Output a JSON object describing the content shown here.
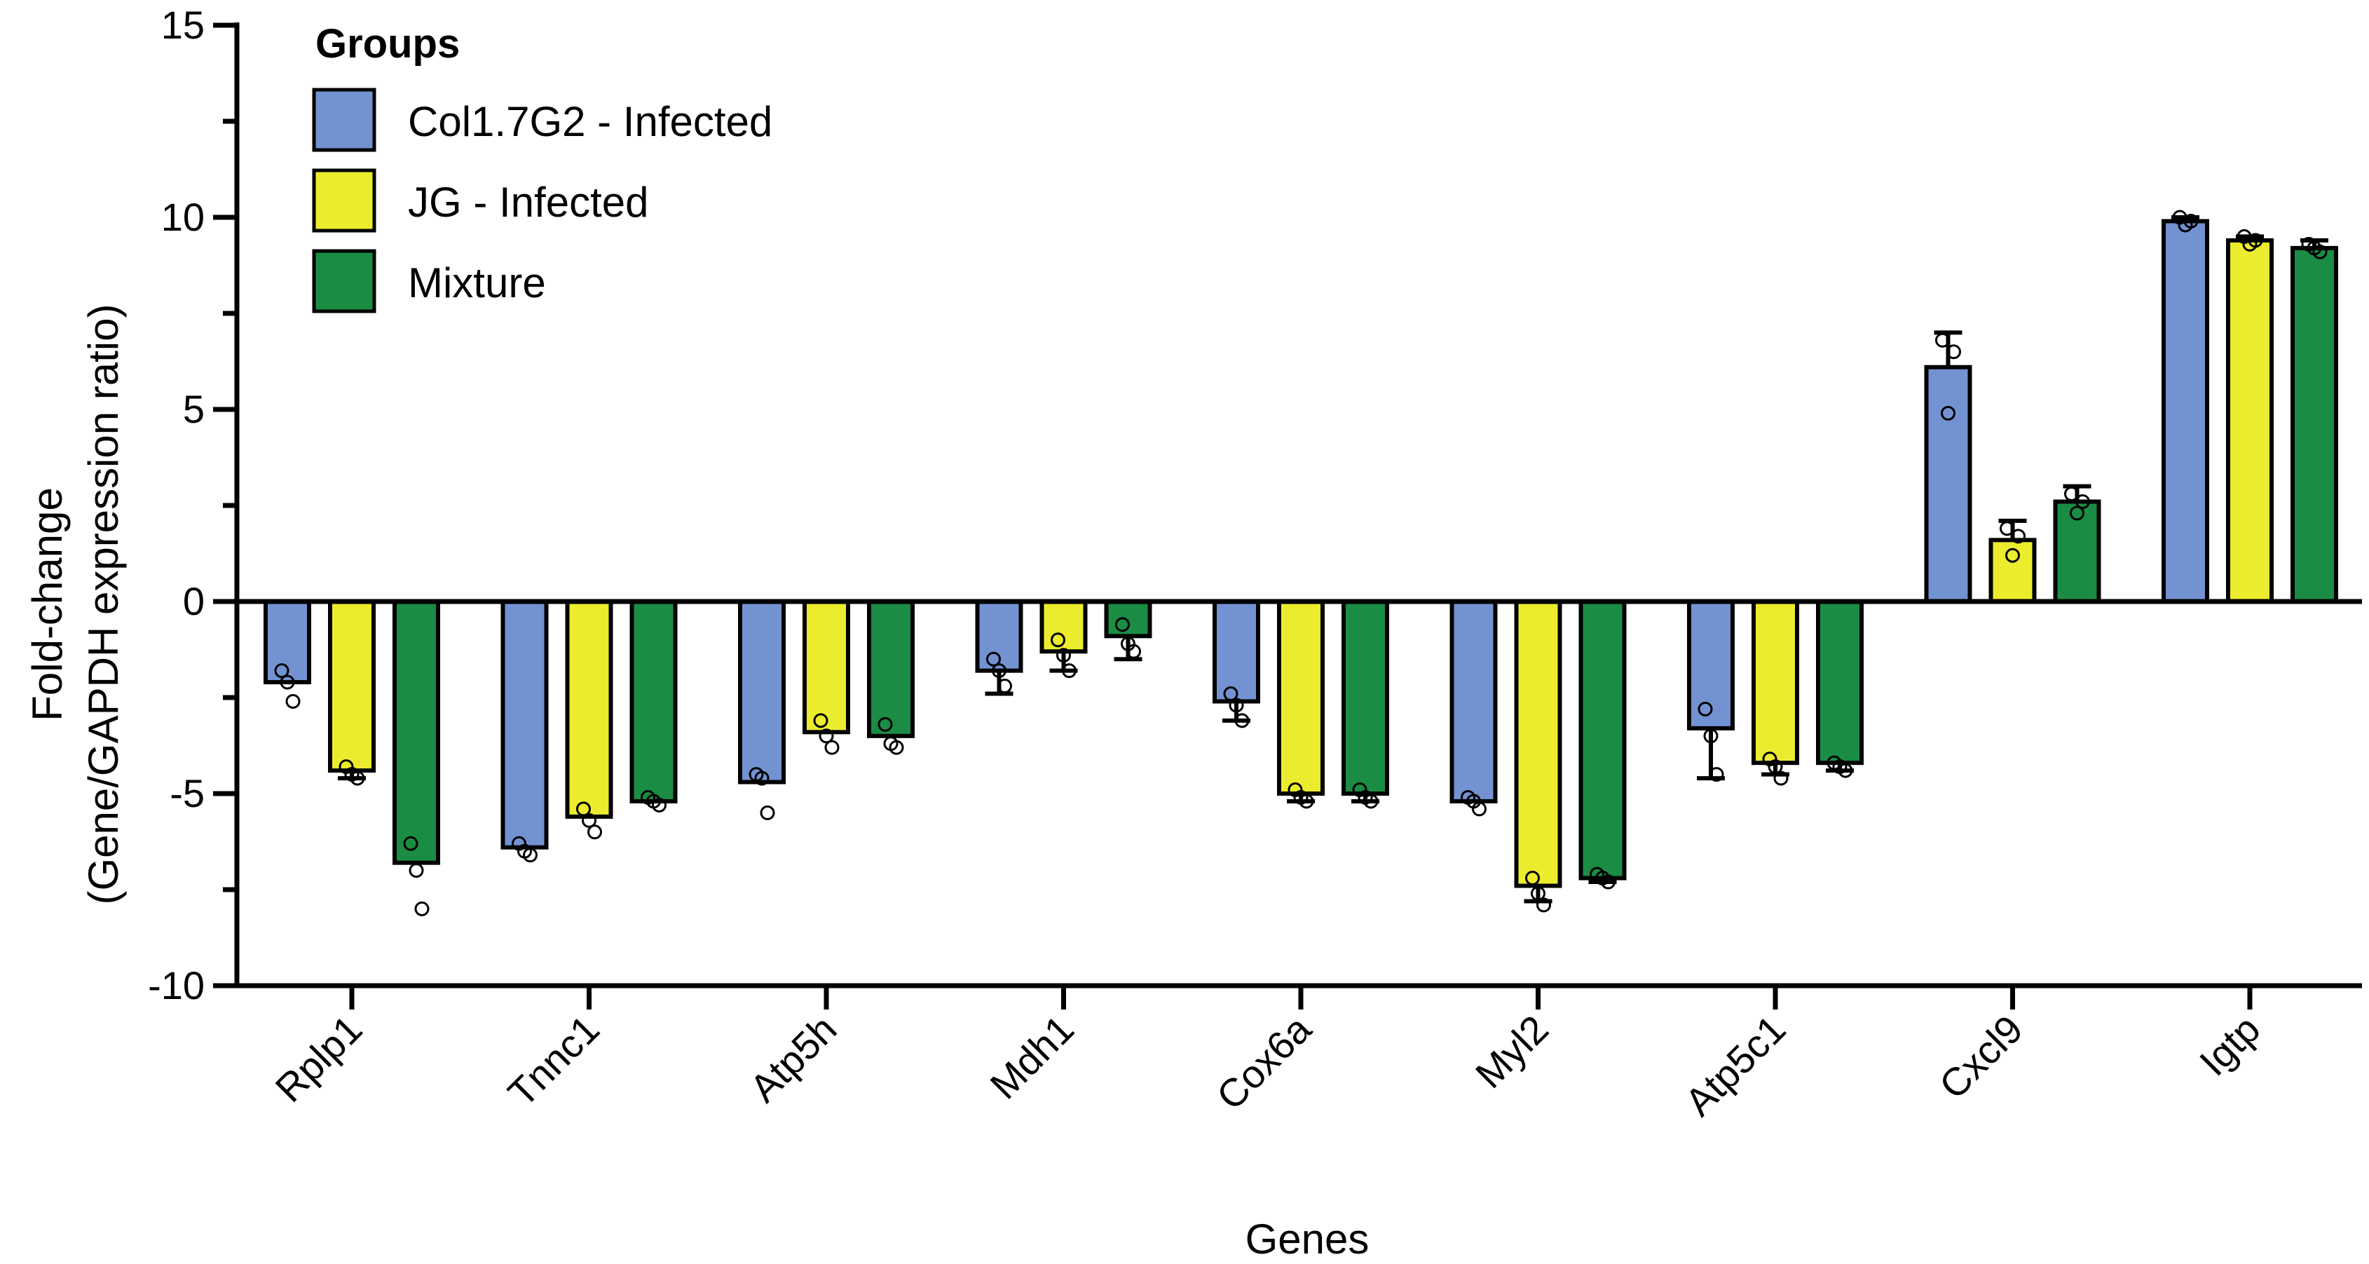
{
  "chart_data": {
    "type": "bar",
    "title": "",
    "xlabel": "Genes",
    "ylabel_line1": "Fold-change",
    "ylabel_line2": "(Gene/GAPDH expression ratio)",
    "ylim": [
      -10,
      15
    ],
    "yticks": [
      -10,
      -5,
      0,
      5,
      10,
      15
    ],
    "ytick_labels": [
      "-10",
      "-5",
      "0",
      "5",
      "10",
      "15"
    ],
    "categories": [
      "Rplp1",
      "Tnnc1",
      "Atp5h",
      "Mdh1",
      "Cox6a",
      "Myl2",
      "Atp5c1",
      "Cxcl9",
      "Igtp"
    ],
    "legend": {
      "title": "Groups",
      "position": "top-left"
    },
    "series": [
      {
        "name": "Col1.7G2 - Infected",
        "color": "#7392d2",
        "values": [
          -2.1,
          -6.4,
          -4.7,
          -1.8,
          -2.6,
          -5.2,
          -3.3,
          6.1,
          9.9
        ],
        "err": [
          0.0,
          0.0,
          0.0,
          0.6,
          0.5,
          0.0,
          1.3,
          0.9,
          0.1
        ],
        "points": [
          [
            -1.8,
            -2.1,
            -2.6
          ],
          [
            -6.3,
            -6.5,
            -6.6
          ],
          [
            -4.5,
            -4.6,
            -5.5
          ],
          [
            -1.5,
            -1.8,
            -2.2
          ],
          [
            -2.4,
            -2.7,
            -3.1
          ],
          [
            -5.1,
            -5.2,
            -5.4
          ],
          [
            -2.8,
            -3.5,
            -4.5
          ],
          [
            6.8,
            4.9,
            6.5
          ],
          [
            10.0,
            9.8,
            9.9
          ]
        ]
      },
      {
        "name": "JG - Infected",
        "color": "#ecec2e",
        "values": [
          -4.4,
          -5.6,
          -3.4,
          -1.3,
          -5.0,
          -7.4,
          -4.2,
          1.6,
          9.4
        ],
        "err": [
          0.2,
          0.0,
          0.0,
          0.5,
          0.2,
          0.4,
          0.3,
          0.5,
          0.1
        ],
        "points": [
          [
            -4.3,
            -4.5,
            -4.6
          ],
          [
            -5.4,
            -5.7,
            -6.0
          ],
          [
            -3.1,
            -3.5,
            -3.8
          ],
          [
            -1.0,
            -1.4,
            -1.8
          ],
          [
            -4.9,
            -5.1,
            -5.2
          ],
          [
            -7.2,
            -7.6,
            -7.9
          ],
          [
            -4.1,
            -4.3,
            -4.6
          ],
          [
            1.9,
            1.2,
            1.7
          ],
          [
            9.5,
            9.3,
            9.4
          ]
        ]
      },
      {
        "name": "Mixture",
        "color": "#1a8c44",
        "values": [
          -6.8,
          -5.2,
          -3.5,
          -0.9,
          -5.0,
          -7.2,
          -4.2,
          2.6,
          9.2
        ],
        "err": [
          0.0,
          0.0,
          0.0,
          0.6,
          0.2,
          0.1,
          0.2,
          0.4,
          0.2
        ],
        "points": [
          [
            -6.3,
            -7.0,
            -8.0
          ],
          [
            -5.1,
            -5.2,
            -5.3
          ],
          [
            -3.2,
            -3.7,
            -3.8
          ],
          [
            -0.6,
            -1.1,
            -1.3
          ],
          [
            -4.9,
            -5.1,
            -5.2
          ],
          [
            -7.1,
            -7.2,
            -7.3
          ],
          [
            -4.2,
            -4.3,
            -4.4
          ],
          [
            2.8,
            2.3,
            2.6
          ],
          [
            9.3,
            9.2,
            9.1
          ]
        ]
      }
    ]
  }
}
